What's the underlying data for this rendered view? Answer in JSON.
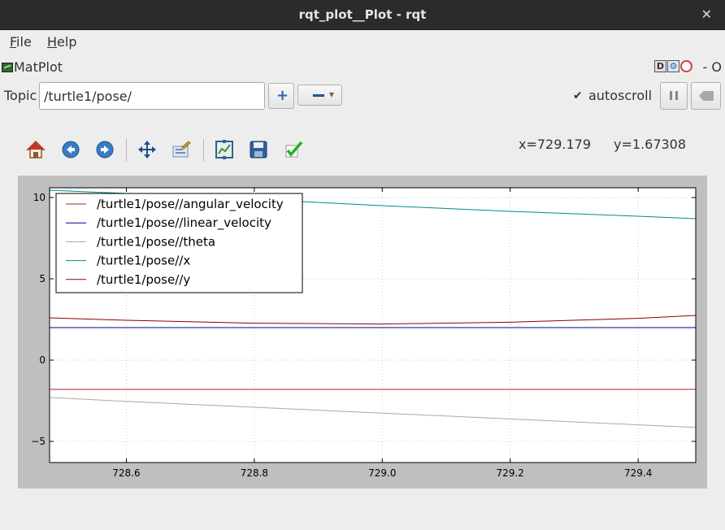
{
  "window": {
    "title": "rqt_plot__Plot - rqt",
    "close_glyph": "✕"
  },
  "menu": {
    "items": [
      {
        "key": "F",
        "rest": "ile"
      },
      {
        "key": "H",
        "rest": "elp"
      }
    ]
  },
  "plugin": {
    "name": "MatPlot",
    "controls": [
      "D",
      "⚙",
      "✕"
    ],
    "dash_o": "- O"
  },
  "topic": {
    "label": "Topic",
    "value": "/turtle1/pose/"
  },
  "autoscroll": {
    "label": "autoscroll",
    "checked": true
  },
  "toolbar": {
    "icons": [
      "home-icon",
      "back-icon",
      "forward-icon",
      "pan-icon",
      "zoom-icon",
      "subplots-icon",
      "save-icon",
      "edit-curves-icon"
    ]
  },
  "cursor": {
    "x_readout": "x=729.179",
    "y_readout": "y=1.67308"
  },
  "chart_data": {
    "type": "line",
    "xlim": [
      728.48,
      729.49
    ],
    "ylim": [
      -6.3,
      10.6
    ],
    "x_ticks": [
      "728.6",
      "728.8",
      "729.0",
      "729.2",
      "729.4"
    ],
    "x_tick_values": [
      728.6,
      728.8,
      729.0,
      729.2,
      729.4
    ],
    "y_ticks": [
      "10",
      "5",
      "0",
      "−5"
    ],
    "y_tick_values": [
      10,
      5,
      0,
      -5
    ],
    "grid": true,
    "legend_placement": "top-left",
    "x": [
      728.48,
      728.6,
      728.8,
      729.0,
      729.2,
      729.4,
      729.49
    ],
    "series": [
      {
        "name": "/turtle1/pose//angular_velocity",
        "color": "#b22222",
        "values": [
          -1.8,
          -1.8,
          -1.8,
          -1.8,
          -1.8,
          -1.8,
          -1.8
        ]
      },
      {
        "name": "/turtle1/pose//linear_velocity",
        "color": "#00008b",
        "values": [
          2.0,
          2.0,
          2.0,
          2.0,
          2.0,
          2.0,
          2.0
        ]
      },
      {
        "name": "/turtle1/pose//theta",
        "color": "#a9a9a9",
        "values": [
          -2.3,
          -2.54,
          -2.9,
          -3.26,
          -3.62,
          -3.98,
          -4.14
        ]
      },
      {
        "name": "/turtle1/pose//x",
        "color": "#008b8b",
        "values": [
          10.45,
          10.25,
          9.9,
          9.5,
          9.15,
          8.85,
          8.7
        ]
      },
      {
        "name": "/turtle1/pose//y",
        "color": "#8b0000",
        "values": [
          2.6,
          2.45,
          2.27,
          2.22,
          2.33,
          2.57,
          2.75
        ]
      }
    ]
  }
}
